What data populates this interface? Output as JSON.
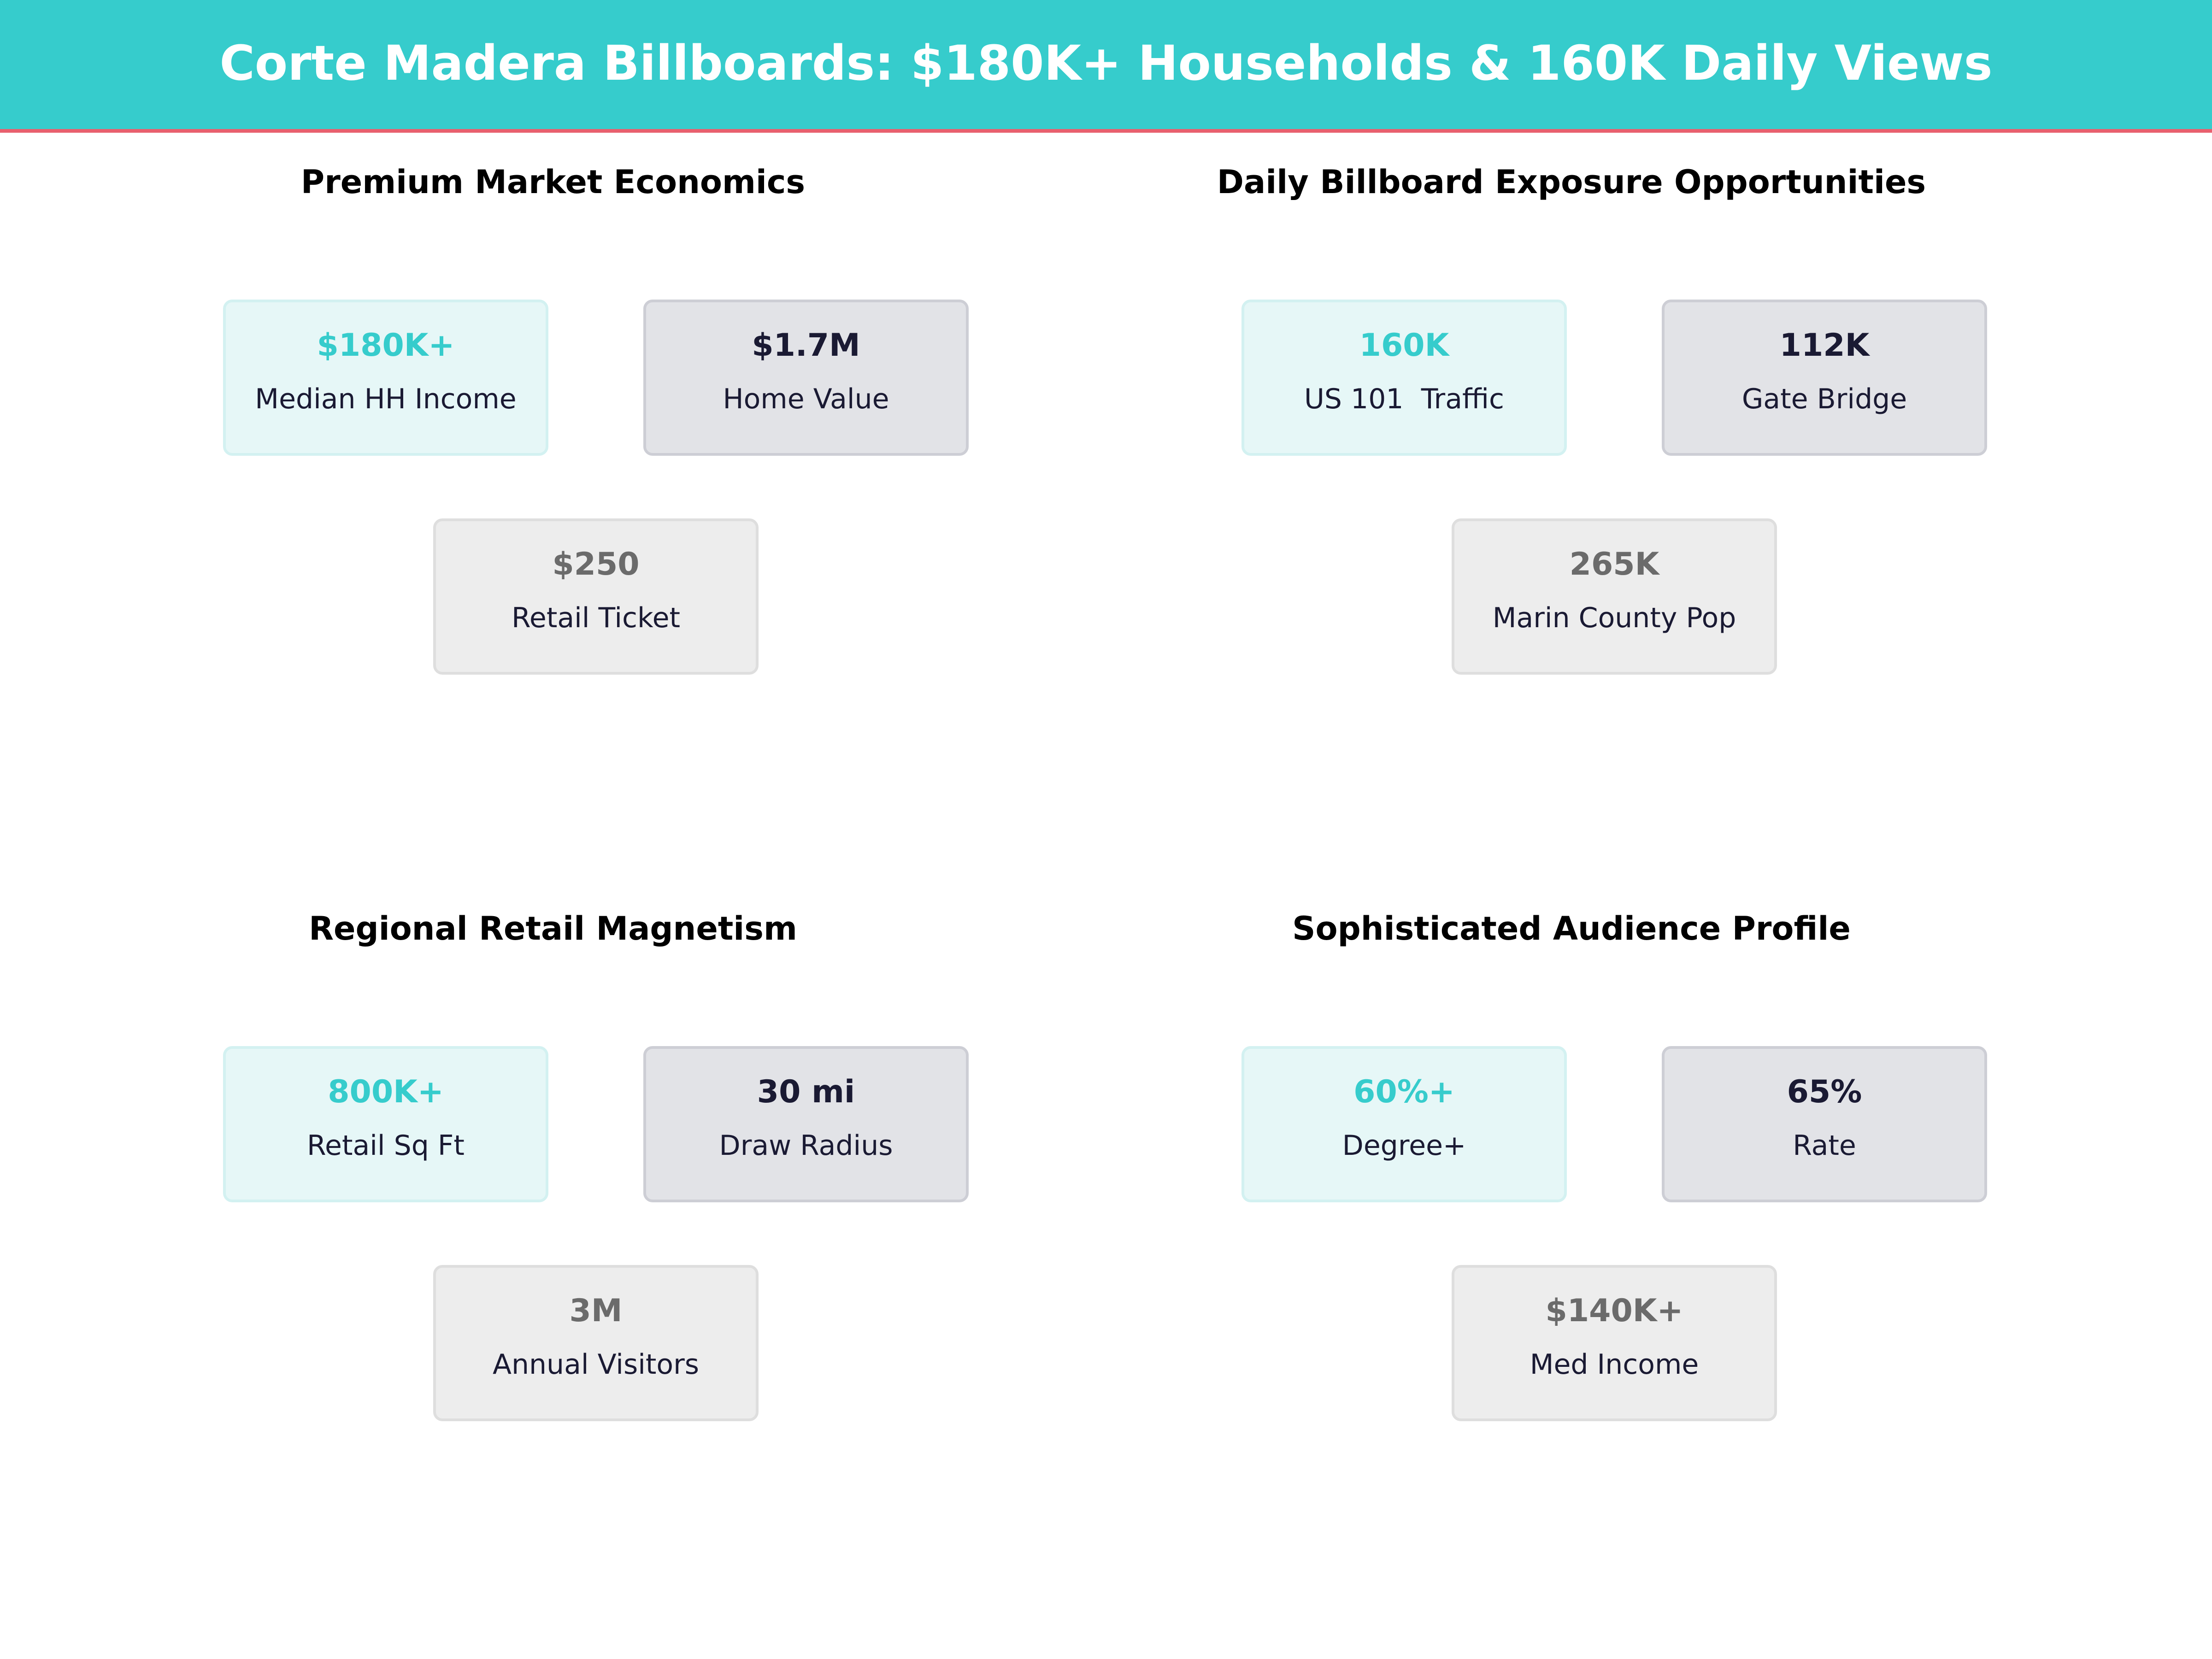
{
  "header": {
    "title": "Corte Madera Billboards: $180K+ Households & 160K Daily Views"
  },
  "colors": {
    "accent": "#36cccc",
    "header_rule": "#e8606e",
    "dark": "#1a1a33",
    "muted": "#6b6b6b"
  },
  "panels": [
    {
      "title": "Premium Market Economics",
      "cards": [
        {
          "value": "$180K+",
          "label": "Median HH Income"
        },
        {
          "value": "$1.7M",
          "label": "Home Value"
        },
        {
          "value": "$250",
          "label": "Retail Ticket"
        }
      ]
    },
    {
      "title": "Daily Billboard Exposure Opportunities",
      "cards": [
        {
          "value": "160K",
          "label": "US 101  Traffic"
        },
        {
          "value": "112K",
          "label": "Gate Bridge"
        },
        {
          "value": "265K",
          "label": "Marin County Pop"
        }
      ]
    },
    {
      "title": "Regional Retail Magnetism",
      "cards": [
        {
          "value": "800K+",
          "label": "Retail Sq Ft"
        },
        {
          "value": "30 mi",
          "label": "Draw Radius"
        },
        {
          "value": "3M",
          "label": "Annual Visitors"
        }
      ]
    },
    {
      "title": "Sophisticated Audience Profile",
      "cards": [
        {
          "value": "60%+",
          "label": "Degree+"
        },
        {
          "value": "65%",
          "label": "Rate"
        },
        {
          "value": "$140K+",
          "label": "Med Income"
        }
      ]
    }
  ]
}
